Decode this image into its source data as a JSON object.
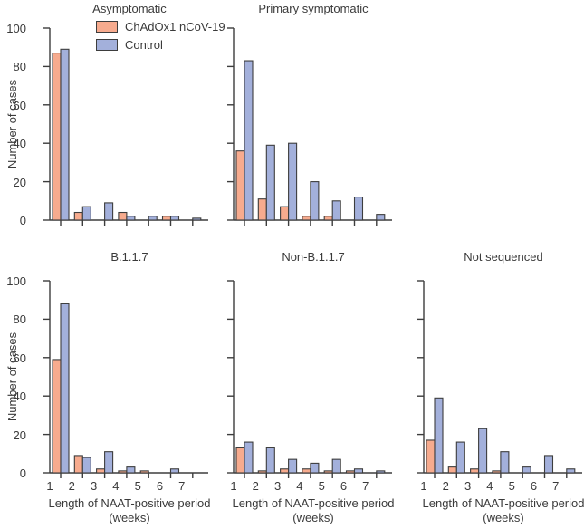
{
  "figure": {
    "ylabel": "Number of cases",
    "xlabel_line1": "Length of NAAT-positive period",
    "xlabel_line2": "(weeks)",
    "text_color": "#3a3a3a",
    "axis_color": "#3d3d3d",
    "background_color": "#ffffff"
  },
  "legend": {
    "position": "top-left-inside-first-panel",
    "items": [
      {
        "label": "ChAdOx1 nCoV-19",
        "color": "#f7ab8e"
      },
      {
        "label": "Control",
        "color": "#a3b0db"
      }
    ]
  },
  "chart_data": [
    {
      "type": "bar",
      "title": "Asymptomatic",
      "categories": [
        "1",
        "2",
        "3",
        "4",
        "5",
        "6",
        "7"
      ],
      "xlabel": "Length of NAAT-positive period (weeks)",
      "ylabel": "Number of cases",
      "ylim": [
        0,
        100
      ],
      "yticks": [
        0,
        20,
        40,
        60,
        80,
        100
      ],
      "grid": false,
      "series": [
        {
          "name": "ChAdOx1 nCoV-19",
          "color": "#f7ab8e",
          "values": [
            87,
            4,
            0,
            4,
            0,
            2,
            0
          ]
        },
        {
          "name": "Control",
          "color": "#a3b0db",
          "values": [
            89,
            7,
            9,
            2,
            2,
            2,
            1
          ]
        }
      ]
    },
    {
      "type": "bar",
      "title": "Primary symptomatic",
      "categories": [
        "1",
        "2",
        "3",
        "4",
        "5",
        "6",
        "7"
      ],
      "xlabel": "Length of NAAT-positive period (weeks)",
      "ylabel": "Number of cases",
      "ylim": [
        0,
        100
      ],
      "yticks": [
        0,
        20,
        40,
        60,
        80,
        100
      ],
      "grid": false,
      "series": [
        {
          "name": "ChAdOx1 nCoV-19",
          "color": "#f7ab8e",
          "values": [
            36,
            11,
            7,
            2,
            2,
            0,
            0
          ]
        },
        {
          "name": "Control",
          "color": "#a3b0db",
          "values": [
            83,
            39,
            40,
            20,
            10,
            12,
            3
          ]
        }
      ]
    },
    {
      "type": "bar",
      "title": "B.1.1.7",
      "categories": [
        "1",
        "2",
        "3",
        "4",
        "5",
        "6",
        "7"
      ],
      "xlabel": "Length of NAAT-positive period (weeks)",
      "ylabel": "Number of cases",
      "ylim": [
        0,
        100
      ],
      "yticks": [
        0,
        20,
        40,
        60,
        80,
        100
      ],
      "grid": false,
      "series": [
        {
          "name": "ChAdOx1 nCoV-19",
          "color": "#f7ab8e",
          "values": [
            59,
            9,
            2,
            1,
            1,
            0,
            0
          ]
        },
        {
          "name": "Control",
          "color": "#a3b0db",
          "values": [
            88,
            8,
            11,
            3,
            0,
            2,
            0
          ]
        }
      ]
    },
    {
      "type": "bar",
      "title": "Non-B.1.1.7",
      "categories": [
        "1",
        "2",
        "3",
        "4",
        "5",
        "6",
        "7"
      ],
      "xlabel": "Length of NAAT-positive period (weeks)",
      "ylabel": "Number of cases",
      "ylim": [
        0,
        100
      ],
      "yticks": [
        0,
        20,
        40,
        60,
        80,
        100
      ],
      "grid": false,
      "series": [
        {
          "name": "ChAdOx1 nCoV-19",
          "color": "#f7ab8e",
          "values": [
            13,
            1,
            2,
            2,
            1,
            1,
            0
          ]
        },
        {
          "name": "Control",
          "color": "#a3b0db",
          "values": [
            16,
            13,
            7,
            5,
            7,
            2,
            1
          ]
        }
      ]
    },
    {
      "type": "bar",
      "title": "Not sequenced",
      "categories": [
        "1",
        "2",
        "3",
        "4",
        "5",
        "6",
        "7"
      ],
      "xlabel": "Length of NAAT-positive period (weeks)",
      "ylabel": "Number of cases",
      "ylim": [
        0,
        100
      ],
      "yticks": [
        0,
        20,
        40,
        60,
        80,
        100
      ],
      "grid": false,
      "series": [
        {
          "name": "ChAdOx1 nCoV-19",
          "color": "#f7ab8e",
          "values": [
            17,
            3,
            2,
            1,
            0,
            0,
            0
          ]
        },
        {
          "name": "Control",
          "color": "#a3b0db",
          "values": [
            39,
            16,
            23,
            11,
            3,
            9,
            2
          ]
        }
      ]
    }
  ]
}
